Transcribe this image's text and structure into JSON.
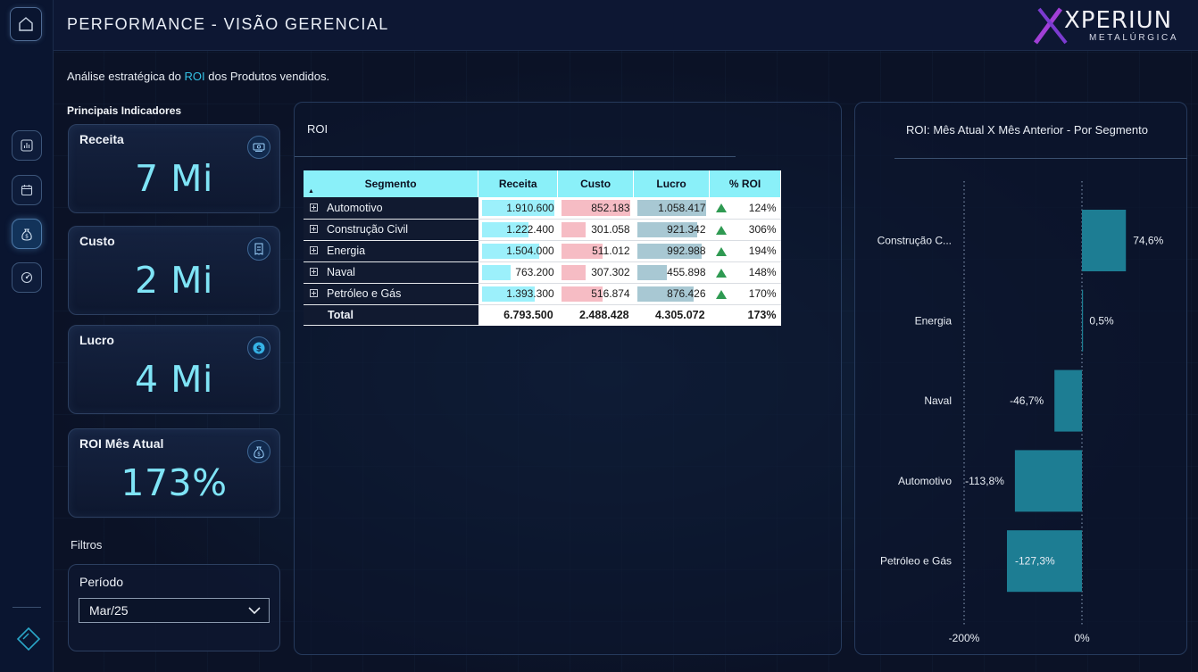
{
  "header": {
    "title": "PERFORMANCE - VISÃO GERENCIAL"
  },
  "logo": {
    "word": "XPERIUN",
    "sub": "METALÚRGICA"
  },
  "subtitle": {
    "pre": "Análise estratégica do ",
    "highlight": "ROI",
    "post": " dos Produtos vendidos."
  },
  "kpis": {
    "heading": "Principais Indicadores",
    "items": [
      {
        "label": "Receita",
        "value": "7 Mi",
        "icon": "money-bill-icon"
      },
      {
        "label": "Custo",
        "value": "2 Mi",
        "icon": "receipt-icon"
      },
      {
        "label": "Lucro",
        "value": "4 Mi",
        "icon": "dollar-coin-icon"
      },
      {
        "label": "ROI Mês Atual",
        "value": "173%",
        "icon": "money-bag-icon"
      }
    ]
  },
  "filters": {
    "title": "Filtros",
    "period_label": "Período",
    "period_value": "Mar/25"
  },
  "roi_table": {
    "title": "ROI",
    "columns": [
      "Segmento",
      "Receita",
      "Custo",
      "Lucro",
      "% ROI"
    ],
    "rows": [
      {
        "segmento": "Automotivo",
        "receita": "1.910.600",
        "custo": "852.183",
        "lucro": "1.058.417",
        "roi": "124%",
        "receita_v": 1910600,
        "custo_v": 852183,
        "lucro_v": 1058417
      },
      {
        "segmento": "Construção Civil",
        "receita": "1.222.400",
        "custo": "301.058",
        "lucro": "921.342",
        "roi": "306%",
        "receita_v": 1222400,
        "custo_v": 301058,
        "lucro_v": 921342
      },
      {
        "segmento": "Energia",
        "receita": "1.504.000",
        "custo": "511.012",
        "lucro": "992.988",
        "roi": "194%",
        "receita_v": 1504000,
        "custo_v": 511012,
        "lucro_v": 992988
      },
      {
        "segmento": "Naval",
        "receita": "763.200",
        "custo": "307.302",
        "lucro": "455.898",
        "roi": "148%",
        "receita_v": 763200,
        "custo_v": 307302,
        "lucro_v": 455898
      },
      {
        "segmento": "Petróleo e Gás",
        "receita": "1.393.300",
        "custo": "516.874",
        "lucro": "876.426",
        "roi": "170%",
        "receita_v": 1393300,
        "custo_v": 516874,
        "lucro_v": 876426
      }
    ],
    "total": {
      "label": "Total",
      "receita": "6.793.500",
      "custo": "2.488.428",
      "lucro": "4.305.072",
      "roi": "173%"
    },
    "colors": {
      "receita": "#9cf0fb",
      "custo": "#f6bcc4",
      "lucro": "#a8c8d3",
      "up_arrow": "#2f9a52"
    }
  },
  "chart_data": {
    "type": "bar",
    "orientation": "horizontal",
    "title": "ROI: Mês Atual X Mês Anterior - Por Segmento",
    "categories": [
      "Construção C...",
      "Energia",
      "Naval",
      "Automotivo",
      "Petróleo e Gás"
    ],
    "values": [
      74.6,
      0.5,
      -46.7,
      -113.8,
      -127.3
    ],
    "data_labels": [
      "74,6%",
      "0,5%",
      "-46,7%",
      "-113,8%",
      "-127,3%"
    ],
    "x_ticks": [
      -200,
      0
    ],
    "x_tick_labels": [
      "-200%",
      "0%"
    ],
    "xlim": [
      -200,
      100
    ],
    "bar_color": "#1d7d93",
    "gridlines": "dotted at tick values"
  }
}
